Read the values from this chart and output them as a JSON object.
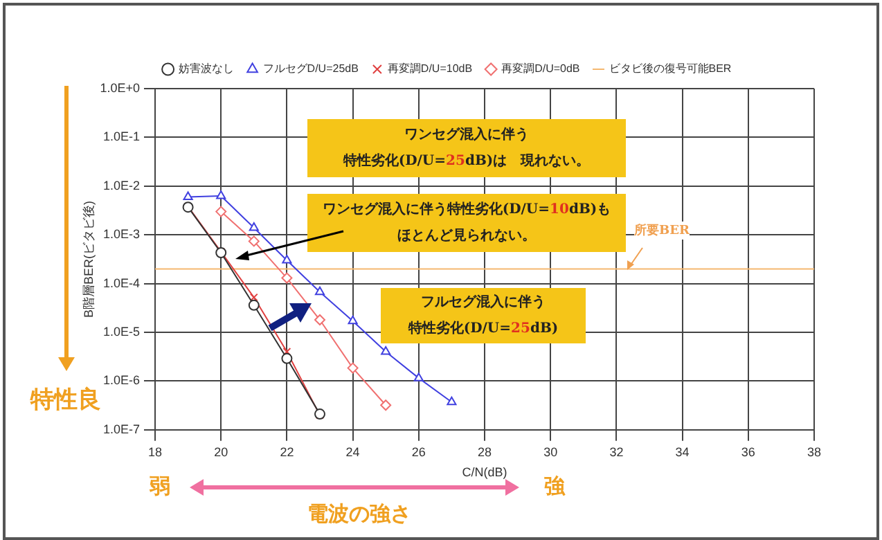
{
  "chart_data": {
    "type": "line",
    "xlabel": "C/N(dB)",
    "ylabel": "B階層BER(ビタビ後)",
    "xlim": [
      18,
      38
    ],
    "xticks": [
      18,
      20,
      22,
      24,
      26,
      28,
      30,
      32,
      34,
      36,
      38
    ],
    "ylim": [
      1e-07,
      1
    ],
    "yticks": [
      {
        "value": 1,
        "label": "1.0E+0"
      },
      {
        "value": 0.1,
        "label": "1.0E-1"
      },
      {
        "value": 0.01,
        "label": "1.0E-2"
      },
      {
        "value": 0.001,
        "label": "1.0E-3"
      },
      {
        "value": 0.0001,
        "label": "1.0E-4"
      },
      {
        "value": 1e-05,
        "label": "1.0E-5"
      },
      {
        "value": 1e-06,
        "label": "1.0E-6"
      },
      {
        "value": 1e-07,
        "label": "1.0E-7"
      }
    ],
    "log": "y",
    "grid": true,
    "legend": "top",
    "series": [
      {
        "name": "妨害波なし",
        "color": "#333333",
        "marker": "circle",
        "x": [
          19,
          20,
          21,
          22,
          23
        ],
        "values": [
          0.0037,
          0.00043,
          3.6e-05,
          2.9e-06,
          2.1e-07
        ]
      },
      {
        "name": "フルセグD/U=25dB",
        "color": "#4040e0",
        "marker": "triangle",
        "x": [
          19,
          20,
          21,
          22,
          23,
          24,
          25,
          26,
          27
        ],
        "values": [
          0.006,
          0.0063,
          0.0014,
          0.0003,
          6.7e-05,
          1.7e-05,
          4e-06,
          1.15e-06,
          3.7e-07
        ]
      },
      {
        "name": "再変調D/U=10dB",
        "color": "#e04040",
        "marker": "cross",
        "x": [
          19,
          20,
          21,
          22,
          23
        ],
        "values": [
          0.0038,
          0.00045,
          5.2e-05,
          4e-06,
          2e-07
        ]
      },
      {
        "name": "再変調D/U=0dB",
        "color": "#f07070",
        "marker": "diamond",
        "x": [
          20,
          21,
          22,
          23,
          24,
          25
        ],
        "values": [
          0.003,
          0.00074,
          0.00013,
          1.8e-05,
          1.85e-06,
          3.2e-07
        ]
      },
      {
        "name": "ビタビ後の復号可能BER",
        "color": "#f5b870",
        "marker": "none",
        "x": [
          18,
          38
        ],
        "values": [
          0.0002,
          0.0002
        ]
      }
    ],
    "annotations": [
      "ワンセグ混入に伴う",
      "特性劣化(D/U=25dB)は　現れない。",
      "ワンセグ混入に伴う特性劣化(D/U=10dB)も",
      "ほとんど見られない。",
      "フルセグ混入に伴う",
      "特性劣化(D/U=25dB)",
      "所要BER",
      "特性良",
      "弱",
      "強",
      "電波の強さ"
    ]
  }
}
